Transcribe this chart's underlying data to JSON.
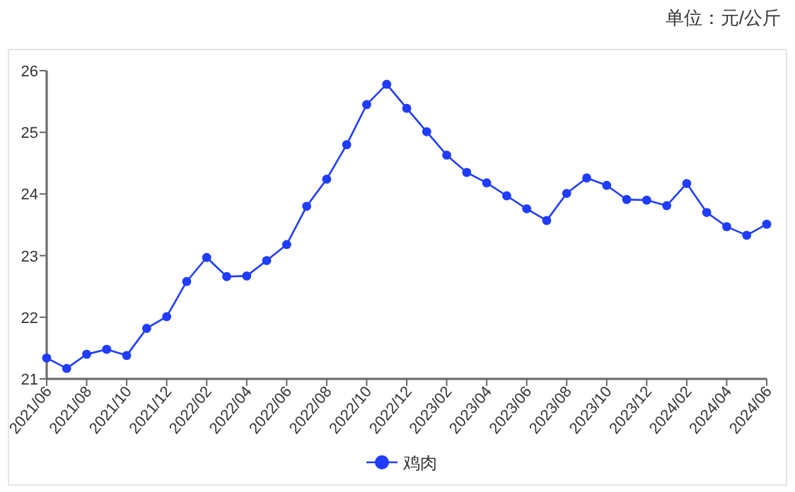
{
  "chart_data": {
    "type": "line",
    "annotations": [
      "单位：元/公斤"
    ],
    "categories": [
      "2021/06",
      null,
      "2021/08",
      null,
      "2021/10",
      null,
      "2021/12",
      null,
      "2022/02",
      null,
      "2022/04",
      null,
      "2022/06",
      null,
      "2022/08",
      null,
      "2022/10",
      null,
      "2022/12",
      null,
      "2023/02",
      null,
      "2023/04",
      null,
      "2023/06",
      null,
      "2023/08",
      null,
      "2023/10",
      null,
      "2023/12",
      null,
      "2024/02",
      null,
      "2024/04",
      null,
      "2024/06"
    ],
    "series": [
      {
        "name": "鸡肉",
        "color": "#1f3cff",
        "values": [
          21.34,
          21.17,
          21.4,
          21.48,
          21.38,
          21.82,
          22.01,
          22.58,
          22.97,
          22.66,
          22.67,
          22.92,
          23.18,
          23.8,
          24.24,
          24.8,
          25.45,
          25.78,
          25.39,
          25.01,
          24.63,
          24.35,
          24.18,
          23.97,
          23.76,
          23.57,
          24.01,
          24.26,
          24.14,
          23.91,
          23.9,
          23.81,
          24.17,
          23.7,
          23.47,
          23.33,
          23.51
        ]
      }
    ],
    "ylim": [
      21,
      26
    ],
    "yticks": [
      21,
      22,
      23,
      24,
      25,
      26
    ],
    "marker": "circle",
    "line_style": "solid",
    "grid": false,
    "legend": "bottom"
  }
}
